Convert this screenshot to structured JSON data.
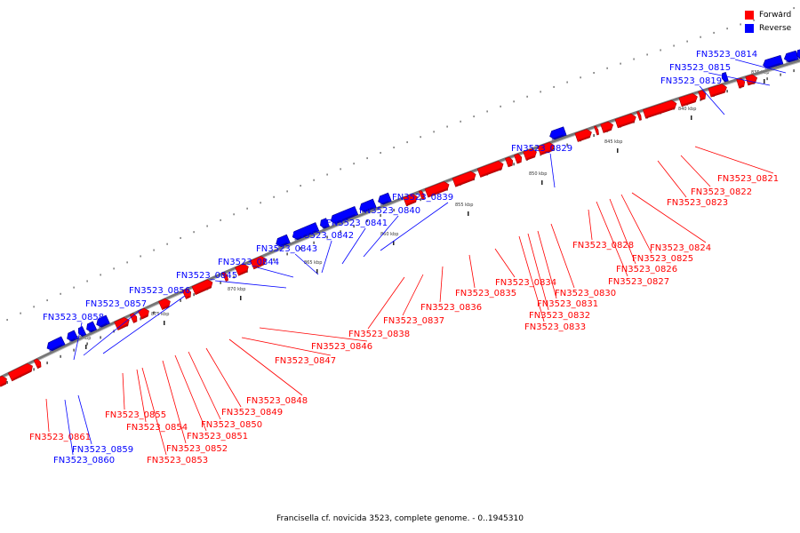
{
  "colors": {
    "forward": "#ff0000",
    "reverse": "#0000ff",
    "backbone": "#777777"
  },
  "legend": [
    {
      "label": "Forward",
      "color": "#ff0000"
    },
    {
      "label": "Reverse",
      "color": "#0000ff"
    }
  ],
  "caption": "Francisella cf. novicida 3523, complete genome. - 0..1945310",
  "ticks": [
    "835 kbp",
    "840 kbp",
    "845 kbp",
    "850 kbp",
    "855 kbp",
    "860 kbp",
    "865 kbp",
    "870 kbp",
    "875 kbp",
    "880 kbp"
  ],
  "genes": [
    {
      "name": "FN3523_0814",
      "strand": "reverse"
    },
    {
      "name": "FN3523_0815",
      "strand": "reverse"
    },
    {
      "name": "FN3523_0819",
      "strand": "reverse"
    },
    {
      "name": "FN3523_0821",
      "strand": "forward"
    },
    {
      "name": "FN3523_0822",
      "strand": "forward"
    },
    {
      "name": "FN3523_0823",
      "strand": "forward"
    },
    {
      "name": "FN3523_0824",
      "strand": "forward"
    },
    {
      "name": "FN3523_0825",
      "strand": "forward"
    },
    {
      "name": "FN3523_0826",
      "strand": "forward"
    },
    {
      "name": "FN3523_0827",
      "strand": "forward"
    },
    {
      "name": "FN3523_0828",
      "strand": "forward"
    },
    {
      "name": "FN3523_0829",
      "strand": "reverse"
    },
    {
      "name": "FN3523_0830",
      "strand": "forward"
    },
    {
      "name": "FN3523_0831",
      "strand": "forward"
    },
    {
      "name": "FN3523_0832",
      "strand": "forward"
    },
    {
      "name": "FN3523_0833",
      "strand": "forward"
    },
    {
      "name": "FN3523_0834",
      "strand": "forward"
    },
    {
      "name": "FN3523_0835",
      "strand": "forward"
    },
    {
      "name": "FN3523_0836",
      "strand": "forward"
    },
    {
      "name": "FN3523_0837",
      "strand": "forward"
    },
    {
      "name": "FN3523_0838",
      "strand": "forward"
    },
    {
      "name": "FN3523_0839",
      "strand": "reverse"
    },
    {
      "name": "FN3523_0840",
      "strand": "reverse"
    },
    {
      "name": "FN3523_0841",
      "strand": "reverse"
    },
    {
      "name": "FN3523_0842",
      "strand": "reverse"
    },
    {
      "name": "FN3523_0843",
      "strand": "reverse"
    },
    {
      "name": "FN3523_0844",
      "strand": "reverse"
    },
    {
      "name": "FN3523_0845",
      "strand": "reverse"
    },
    {
      "name": "FN3523_0846",
      "strand": "forward"
    },
    {
      "name": "FN3523_0847",
      "strand": "forward"
    },
    {
      "name": "FN3523_0848",
      "strand": "forward"
    },
    {
      "name": "FN3523_0849",
      "strand": "forward"
    },
    {
      "name": "FN3523_0850",
      "strand": "forward"
    },
    {
      "name": "FN3523_0851",
      "strand": "forward"
    },
    {
      "name": "FN3523_0852",
      "strand": "forward"
    },
    {
      "name": "FN3523_0853",
      "strand": "forward"
    },
    {
      "name": "FN3523_0854",
      "strand": "forward"
    },
    {
      "name": "FN3523_0855",
      "strand": "forward"
    },
    {
      "name": "FN3523_0856",
      "strand": "reverse"
    },
    {
      "name": "FN3523_0857",
      "strand": "reverse"
    },
    {
      "name": "FN3523_0858",
      "strand": "reverse"
    },
    {
      "name": "FN3523_0859",
      "strand": "reverse"
    },
    {
      "name": "FN3523_0860",
      "strand": "reverse"
    },
    {
      "name": "FN3523_0861",
      "strand": "forward"
    }
  ]
}
